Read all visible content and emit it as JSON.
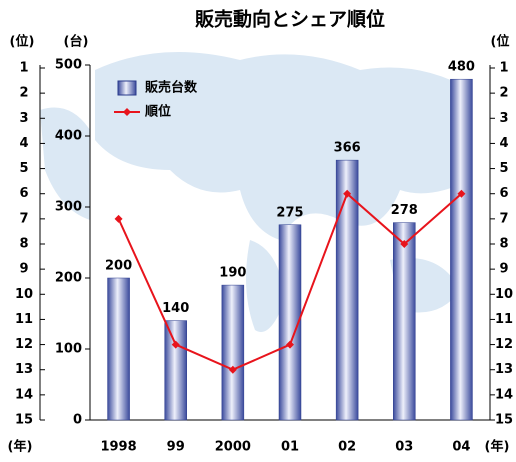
{
  "chart_data": {
    "type": "bar_line",
    "title": "販売動向とシェア順位",
    "categories": [
      "1998",
      "99",
      "2000",
      "01",
      "02",
      "03",
      "04"
    ],
    "series": [
      {
        "name": "販売台数",
        "color": "#5b6fc4",
        "values": [
          200,
          140,
          190,
          275,
          366,
          278,
          480
        ]
      },
      {
        "name": "順位",
        "color": "#e8141c",
        "values": [
          7,
          12,
          13,
          12,
          6,
          8,
          6
        ],
        "axis": "y2"
      }
    ],
    "ylim": [
      0,
      500
    ],
    "yticks": [
      0,
      100,
      200,
      300,
      400,
      500
    ],
    "y2lim": [
      1,
      15
    ],
    "y2ticks": [
      1,
      2,
      3,
      4,
      5,
      6,
      7,
      8,
      9,
      10,
      11,
      12,
      13,
      14,
      15
    ],
    "y2_inverted": true,
    "y_label": "(台)",
    "y2_label": "(位",
    "y2_label_left": "(位)",
    "x_label": "(年)"
  }
}
